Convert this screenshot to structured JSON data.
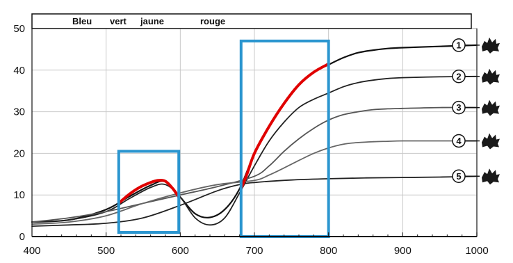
{
  "chart_data": {
    "type": "line",
    "title": "",
    "xlabel": "",
    "ylabel": "",
    "xlim": [
      400,
      1000
    ],
    "ylim": [
      0,
      50
    ],
    "x_ticks": [
      "400",
      "500",
      "600",
      "700",
      "800",
      "900",
      "1000"
    ],
    "y_ticks": [
      "0",
      "10",
      "20",
      "30",
      "40",
      "50"
    ],
    "grid": true,
    "band_labels": [
      "Bleu",
      "vert",
      "jaune",
      "rouge"
    ],
    "series": [
      {
        "name": "1",
        "x": [
          400,
          450,
          500,
          530,
          560,
          580,
          600,
          620,
          640,
          660,
          680,
          700,
          720,
          740,
          760,
          780,
          800,
          820,
          840,
          860,
          880,
          900,
          950,
          1000
        ],
        "y": [
          3.5,
          4,
          6.5,
          9.5,
          12.3,
          13.2,
          9.5,
          5.5,
          4.6,
          6.5,
          11.5,
          20,
          26.5,
          32,
          36.5,
          39.5,
          41.3,
          43,
          44.2,
          44.8,
          45.2,
          45.4,
          45.7,
          46
        ]
      },
      {
        "name": "2",
        "x": [
          400,
          450,
          500,
          530,
          560,
          580,
          600,
          620,
          640,
          660,
          680,
          700,
          720,
          740,
          760,
          780,
          800,
          820,
          840,
          860,
          880,
          900,
          950,
          1000
        ],
        "y": [
          3.5,
          4,
          6,
          9,
          11.8,
          12.5,
          9.5,
          4.5,
          2.8,
          4.5,
          10.5,
          17,
          23,
          27.5,
          31,
          33,
          34.5,
          36,
          37,
          37.6,
          38,
          38.2,
          38.4,
          38.5
        ]
      },
      {
        "name": "3",
        "x": [
          400,
          450,
          500,
          550,
          600,
          650,
          700,
          720,
          740,
          760,
          780,
          800,
          820,
          840,
          860,
          880,
          900,
          950,
          1000
        ],
        "y": [
          3.5,
          4.5,
          6,
          8,
          10,
          12,
          14.5,
          17,
          20.5,
          23.5,
          26,
          28,
          29.3,
          30,
          30.5,
          30.7,
          30.8,
          31,
          31
        ]
      },
      {
        "name": "4",
        "x": [
          400,
          450,
          500,
          550,
          600,
          650,
          700,
          720,
          740,
          760,
          780,
          800,
          820,
          840,
          860,
          880,
          900,
          950,
          1000
        ],
        "y": [
          3,
          3.5,
          5,
          8,
          10.5,
          12.5,
          13.5,
          14.8,
          16.5,
          18.3,
          20,
          21.3,
          22.2,
          22.6,
          22.8,
          22.9,
          23,
          23,
          23
        ]
      },
      {
        "name": "5",
        "x": [
          400,
          450,
          500,
          550,
          600,
          650,
          680,
          700,
          750,
          800,
          850,
          900,
          950,
          1000
        ],
        "y": [
          2.5,
          2.8,
          3.2,
          4.5,
          7.5,
          11,
          12.5,
          13,
          13.6,
          13.9,
          14.1,
          14.2,
          14.3,
          14.5
        ]
      }
    ],
    "highlight": {
      "segments": [
        {
          "x": [
            517,
            530,
            545,
            560,
            570,
            580,
            590,
            598
          ],
          "y": [
            8,
            10,
            11.8,
            13,
            13.5,
            13.3,
            11.5,
            9.5
          ]
        },
        {
          "x": [
            682,
            690,
            700,
            720,
            740,
            760,
            780,
            800
          ],
          "y": [
            11.5,
            15,
            20,
            26.5,
            32,
            36.5,
            39.5,
            41.5
          ]
        }
      ],
      "color": "#e00000"
    },
    "boxes": [
      {
        "x": [
          517,
          598
        ],
        "y": [
          1,
          20.5
        ]
      },
      {
        "x": [
          682,
          800
        ],
        "y": [
          0,
          47
        ]
      }
    ],
    "box_color": "#2a95cf",
    "line_colors": [
      "#111111",
      "#222222",
      "#555555",
      "#666666",
      "#222222"
    ]
  }
}
